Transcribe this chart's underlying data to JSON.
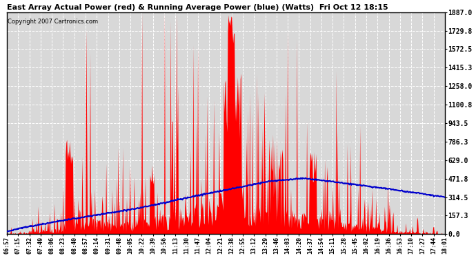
{
  "title": "East Array Actual Power (red) & Running Average Power (blue) (Watts)  Fri Oct 12 18:15",
  "copyright": "Copyright 2007 Cartronics.com",
  "ylim": [
    0,
    1887.0
  ],
  "yticks": [
    0.0,
    157.3,
    314.5,
    471.8,
    629.0,
    786.3,
    943.5,
    1100.8,
    1258.0,
    1415.3,
    1572.5,
    1729.8,
    1887.0
  ],
  "ytick_labels": [
    "0.0",
    "157.3",
    "314.5",
    "471.8",
    "629.0",
    "786.3",
    "943.5",
    "1100.8",
    "1258.0",
    "1415.3",
    "1572.5",
    "1729.8",
    "1887.0"
  ],
  "bg_color": "#ffffff",
  "plot_bg_color": "#d8d8d8",
  "red_color": "#ff0000",
  "blue_color": "#0000cc",
  "grid_color": "#ffffff",
  "x_labels": [
    "06:57",
    "07:15",
    "07:32",
    "07:49",
    "08:06",
    "08:23",
    "08:40",
    "08:57",
    "09:14",
    "09:31",
    "09:48",
    "10:05",
    "10:22",
    "10:39",
    "10:56",
    "11:13",
    "11:30",
    "11:47",
    "12:04",
    "12:21",
    "12:38",
    "12:55",
    "13:12",
    "13:29",
    "13:46",
    "14:03",
    "14:20",
    "14:37",
    "14:54",
    "15:11",
    "15:28",
    "15:45",
    "16:02",
    "16:19",
    "16:36",
    "16:53",
    "17:10",
    "17:27",
    "17:44",
    "18:01"
  ],
  "figsize": [
    6.9,
    3.75
  ],
  "dpi": 100
}
